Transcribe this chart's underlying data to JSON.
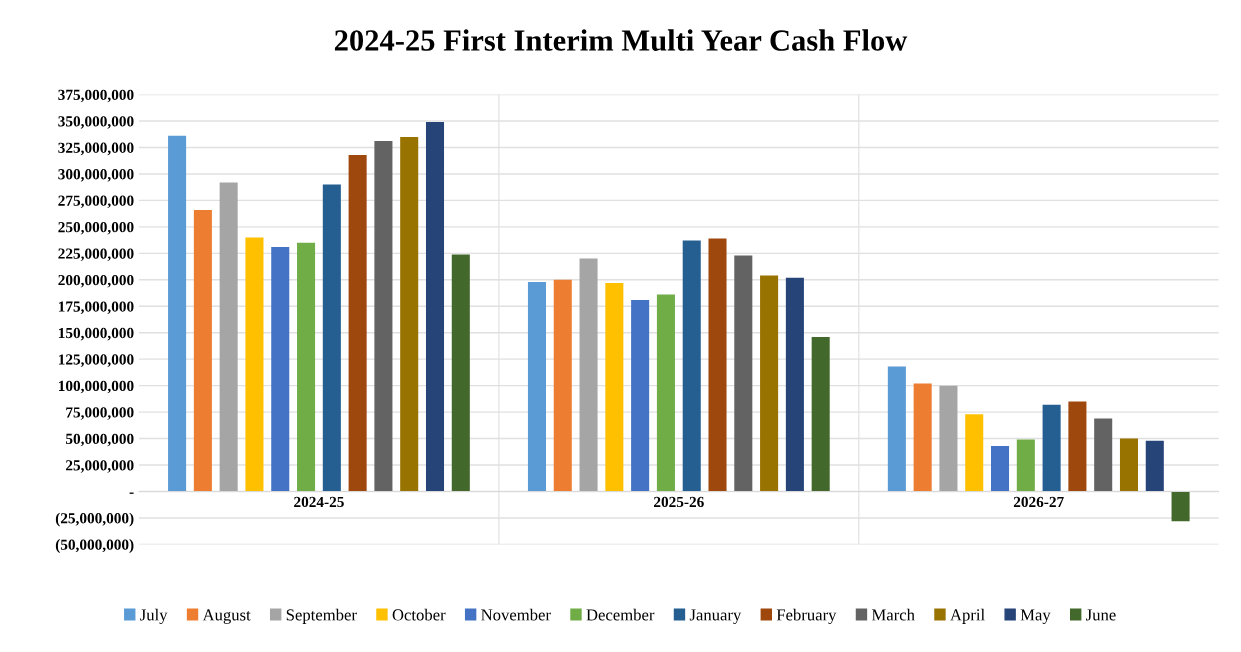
{
  "chart_data": {
    "type": "bar",
    "title": "2024-25 First Interim Multi Year Cash Flow",
    "categories": [
      "2024-25",
      "2025-26",
      "2026-27"
    ],
    "series": [
      {
        "name": "July",
        "color": "#5b9bd5",
        "values": [
          336000000,
          198000000,
          118000000
        ]
      },
      {
        "name": "August",
        "color": "#ed7d31",
        "values": [
          266000000,
          200000000,
          102000000
        ]
      },
      {
        "name": "September",
        "color": "#a5a5a5",
        "values": [
          292000000,
          220000000,
          100000000
        ]
      },
      {
        "name": "October",
        "color": "#ffc000",
        "values": [
          240000000,
          197000000,
          73000000
        ]
      },
      {
        "name": "November",
        "color": "#4472c4",
        "values": [
          231000000,
          181000000,
          43000000
        ]
      },
      {
        "name": "December",
        "color": "#70ad47",
        "values": [
          235000000,
          186000000,
          49000000
        ]
      },
      {
        "name": "January",
        "color": "#255e91",
        "values": [
          290000000,
          237000000,
          82000000
        ]
      },
      {
        "name": "February",
        "color": "#9e480e",
        "values": [
          318000000,
          239000000,
          85000000
        ]
      },
      {
        "name": "March",
        "color": "#636363",
        "values": [
          331000000,
          223000000,
          69000000
        ]
      },
      {
        "name": "April",
        "color": "#997300",
        "values": [
          335000000,
          204000000,
          50000000
        ]
      },
      {
        "name": "May",
        "color": "#264478",
        "values": [
          349000000,
          202000000,
          48000000
        ]
      },
      {
        "name": "June",
        "color": "#43682b",
        "values": [
          224000000,
          146000000,
          -28000000
        ]
      }
    ],
    "ylim": [
      -50000000,
      375000000
    ],
    "yticks": [
      {
        "value": -50000000,
        "label": "(50,000,000)"
      },
      {
        "value": -25000000,
        "label": "(25,000,000)"
      },
      {
        "value": 0,
        "label": "-"
      },
      {
        "value": 25000000,
        "label": "25,000,000"
      },
      {
        "value": 50000000,
        "label": "50,000,000"
      },
      {
        "value": 75000000,
        "label": "75,000,000"
      },
      {
        "value": 100000000,
        "label": "100,000,000"
      },
      {
        "value": 125000000,
        "label": "125,000,000"
      },
      {
        "value": 150000000,
        "label": "150,000,000"
      },
      {
        "value": 175000000,
        "label": "175,000,000"
      },
      {
        "value": 200000000,
        "label": "200,000,000"
      },
      {
        "value": 225000000,
        "label": "225,000,000"
      },
      {
        "value": 250000000,
        "label": "250,000,000"
      },
      {
        "value": 275000000,
        "label": "275,000,000"
      },
      {
        "value": 300000000,
        "label": "300,000,000"
      },
      {
        "value": 325000000,
        "label": "325,000,000"
      },
      {
        "value": 350000000,
        "label": "350,000,000"
      },
      {
        "value": 375000000,
        "label": "375,000,000"
      }
    ],
    "grid": "y",
    "legend": "bottom"
  }
}
